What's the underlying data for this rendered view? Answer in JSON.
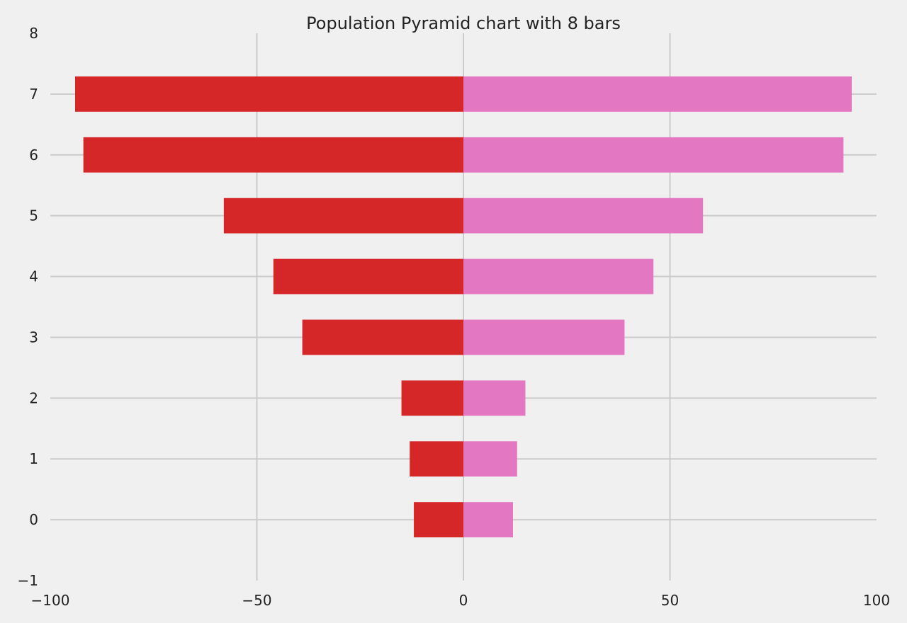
{
  "chart_data": {
    "type": "bar",
    "orientation": "horizontal",
    "title": "Population Pyramid chart with 8 bars",
    "xlabel": "",
    "ylabel": "",
    "categories": [
      0,
      1,
      2,
      3,
      4,
      5,
      6,
      7
    ],
    "series": [
      {
        "color": "#d62728",
        "values": [
          -12,
          -13,
          -15,
          -39,
          -46,
          -58,
          -92,
          -94
        ]
      },
      {
        "color": "#e377c2",
        "values": [
          12,
          13,
          15,
          39,
          46,
          58,
          92,
          94
        ]
      }
    ],
    "xlim": [
      -100,
      100
    ],
    "ylim": [
      -1,
      8
    ],
    "xticks": [
      -100,
      -50,
      0,
      50,
      100
    ],
    "xtick_labels": [
      "−100",
      "−50",
      "0",
      "50",
      "100"
    ],
    "yticks": [
      -1,
      0,
      1,
      2,
      3,
      4,
      5,
      6,
      7,
      8
    ],
    "ytick_labels": [
      "−1",
      "0",
      "1",
      "2",
      "3",
      "4",
      "5",
      "6",
      "7",
      "8"
    ],
    "grid": true,
    "background": "#f0f0f0",
    "grid_color": "#cbcbcb"
  }
}
